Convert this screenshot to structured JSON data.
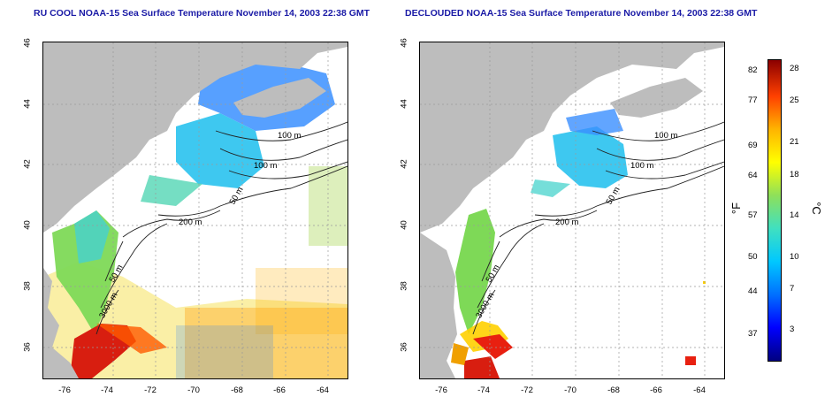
{
  "panels": [
    {
      "title": "RU COOL NOAA-15 Sea Surface Temperature November 14, 2003 22:38 GMT",
      "contours": [
        "100 m",
        "100 m",
        "50 m",
        "200 m",
        "50 m",
        "3000 m"
      ]
    },
    {
      "title": "DECLOUDED NOAA-15 Sea Surface Temperature November 14, 2003 22:38 GMT",
      "contours": [
        "100 m",
        "100 m",
        "50 m",
        "200 m",
        "50 m",
        "3000 m"
      ]
    }
  ],
  "axes": {
    "y_ticks": [
      "46",
      "44",
      "42",
      "40",
      "38",
      "36"
    ],
    "x_ticks": [
      "-76",
      "-74",
      "-72",
      "-70",
      "-68",
      "-66",
      "-64"
    ]
  },
  "colorbar": {
    "left_unit": "°F",
    "right_unit": "°C",
    "fahrenheit": [
      "82",
      "77",
      "69",
      "64",
      "57",
      "50",
      "44",
      "37"
    ],
    "celsius": [
      "28",
      "25",
      "21",
      "18",
      "14",
      "10",
      "7",
      "3"
    ]
  },
  "colors": {
    "land": "#bdbdbd",
    "title": "#1a1aa6",
    "grid": "#9a9a9a"
  }
}
